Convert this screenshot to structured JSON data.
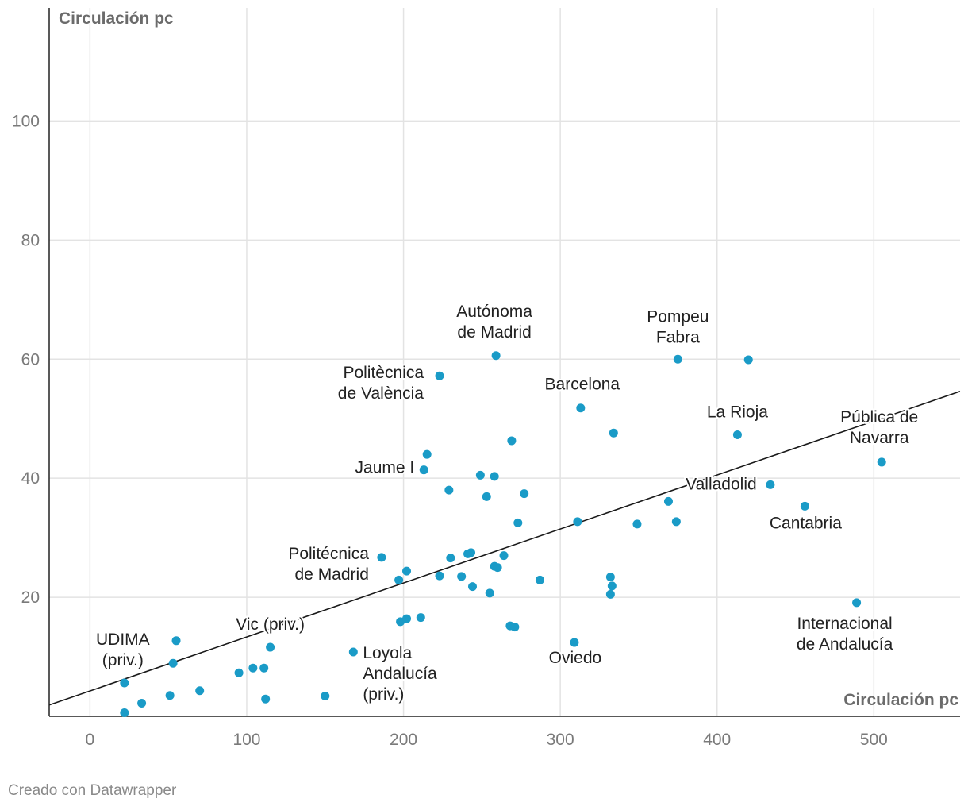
{
  "chart_data": {
    "type": "scatter",
    "title": "",
    "xlabel": "Circulación pc",
    "ylabel": "Circulación pc",
    "xlim": [
      -26,
      555
    ],
    "ylim": [
      0,
      119
    ],
    "x_ticks": [
      0,
      100,
      200,
      300,
      400,
      500
    ],
    "y_ticks": [
      20,
      40,
      60,
      80,
      100
    ],
    "grid": true,
    "legend": "none",
    "trend_line": {
      "x": [
        -26,
        555
      ],
      "y": [
        1.9,
        54.6
      ]
    },
    "color": "#1a9bc7",
    "points": [
      {
        "x": 22,
        "y": 5.6,
        "label": [
          "UDIMA",
          "(priv.)"
        ]
      },
      {
        "x": 22,
        "y": 0.6
      },
      {
        "x": 33,
        "y": 2.2
      },
      {
        "x": 51,
        "y": 3.5
      },
      {
        "x": 53,
        "y": 8.9
      },
      {
        "x": 55,
        "y": 12.7
      },
      {
        "x": 70,
        "y": 4.3
      },
      {
        "x": 95,
        "y": 7.3
      },
      {
        "x": 104,
        "y": 8.1
      },
      {
        "x": 111,
        "y": 8.1
      },
      {
        "x": 112,
        "y": 2.9
      },
      {
        "x": 115,
        "y": 11.6,
        "label": [
          "Vic (priv.)"
        ]
      },
      {
        "x": 150,
        "y": 3.4
      },
      {
        "x": 168,
        "y": 10.8,
        "label": [
          "Loyola",
          "Andalucía",
          "(priv.)"
        ]
      },
      {
        "x": 186,
        "y": 26.7,
        "label": [
          "Politécnica",
          "de Madrid"
        ]
      },
      {
        "x": 197,
        "y": 22.9
      },
      {
        "x": 198,
        "y": 15.9
      },
      {
        "x": 202,
        "y": 16.4
      },
      {
        "x": 202,
        "y": 24.4
      },
      {
        "x": 211,
        "y": 16.6
      },
      {
        "x": 213,
        "y": 41.4,
        "label": [
          "Jaume I"
        ]
      },
      {
        "x": 215,
        "y": 44.0
      },
      {
        "x": 223,
        "y": 57.2,
        "label": [
          "Politècnica",
          "de València"
        ]
      },
      {
        "x": 223,
        "y": 23.6
      },
      {
        "x": 229,
        "y": 38.0
      },
      {
        "x": 230,
        "y": 26.6
      },
      {
        "x": 237,
        "y": 23.5
      },
      {
        "x": 241,
        "y": 27.3
      },
      {
        "x": 243,
        "y": 27.5
      },
      {
        "x": 244,
        "y": 21.8
      },
      {
        "x": 249,
        "y": 40.5
      },
      {
        "x": 253,
        "y": 36.9
      },
      {
        "x": 255,
        "y": 20.7
      },
      {
        "x": 258,
        "y": 40.3
      },
      {
        "x": 258,
        "y": 25.2
      },
      {
        "x": 259,
        "y": 60.6,
        "label": [
          "Autónoma",
          "de Madrid"
        ]
      },
      {
        "x": 260,
        "y": 25.0
      },
      {
        "x": 264,
        "y": 27.0
      },
      {
        "x": 268,
        "y": 15.2
      },
      {
        "x": 269,
        "y": 46.3
      },
      {
        "x": 271,
        "y": 15.0
      },
      {
        "x": 273,
        "y": 32.5
      },
      {
        "x": 277,
        "y": 37.4
      },
      {
        "x": 287,
        "y": 22.9
      },
      {
        "x": 309,
        "y": 12.4,
        "label": [
          "Oviedo"
        ]
      },
      {
        "x": 311,
        "y": 32.7
      },
      {
        "x": 313,
        "y": 51.8,
        "label": [
          "Barcelona"
        ]
      },
      {
        "x": 332,
        "y": 23.4
      },
      {
        "x": 332,
        "y": 20.5
      },
      {
        "x": 333,
        "y": 21.9
      },
      {
        "x": 334,
        "y": 47.6
      },
      {
        "x": 349,
        "y": 32.3
      },
      {
        "x": 369,
        "y": 36.1
      },
      {
        "x": 374,
        "y": 32.7
      },
      {
        "x": 375,
        "y": 60.0,
        "label": [
          "Pompeu",
          "Fabra"
        ]
      },
      {
        "x": 413,
        "y": 47.3,
        "label": [
          "La Rioja"
        ]
      },
      {
        "x": 420,
        "y": 59.9
      },
      {
        "x": 434,
        "y": 38.9,
        "label": [
          "Valladolid"
        ]
      },
      {
        "x": 456,
        "y": 35.3,
        "label": [
          "Cantabria"
        ]
      },
      {
        "x": 489,
        "y": 19.1,
        "label": [
          "Internacional",
          "de Andalucía"
        ]
      },
      {
        "x": 505,
        "y": 42.7,
        "label": [
          "Pública de",
          "Navarra"
        ]
      }
    ]
  },
  "footer": {
    "credit": "Creado con Datawrapper"
  }
}
